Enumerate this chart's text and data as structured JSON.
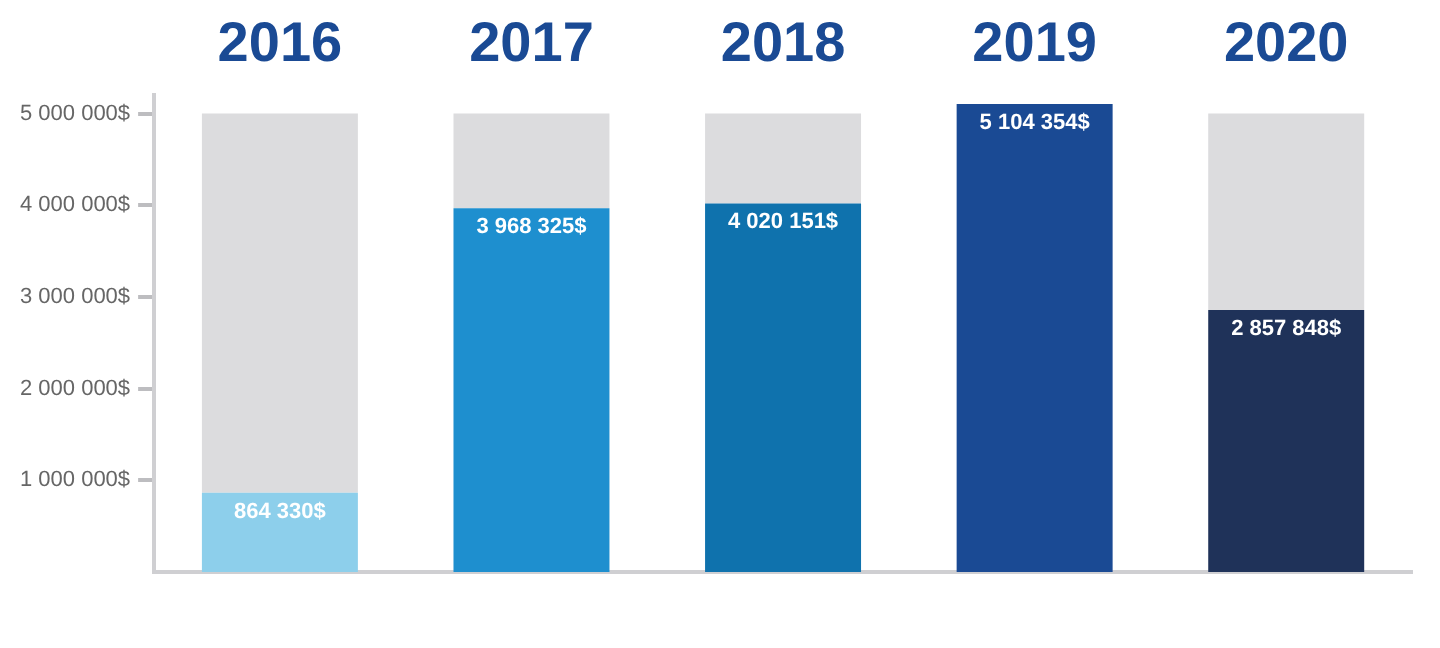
{
  "chart_data": {
    "type": "bar",
    "categories": [
      "2016",
      "2017",
      "2018",
      "2019",
      "2020"
    ],
    "stacked": true,
    "series": [
      {
        "colors": [
          "#8dcfeb",
          "#1e8fcf",
          "#0f72ad",
          "#1a4a94",
          "#1f3259"
        ],
        "values": [
          864330,
          3968325,
          4020151,
          5104354,
          2857848
        ],
        "value_labels": [
          "864 330$",
          "3 968 325$",
          "4 020 151$",
          "5 104 354$",
          "2 857 848$"
        ]
      },
      {
        "color": "#dcdcde",
        "values": [
          4135670,
          1031675,
          979849,
          null,
          2142152
        ]
      }
    ],
    "ylim": [
      0,
      5200000
    ],
    "yticks": [
      {
        "value": 1000000,
        "label": "1 000 000$"
      },
      {
        "value": 2000000,
        "label": "2 000 000$"
      },
      {
        "value": 3000000,
        "label": "3 000 000$"
      },
      {
        "value": 4000000,
        "label": "4 000 000$"
      },
      {
        "value": 5000000,
        "label": "5 000 000$"
      }
    ]
  }
}
